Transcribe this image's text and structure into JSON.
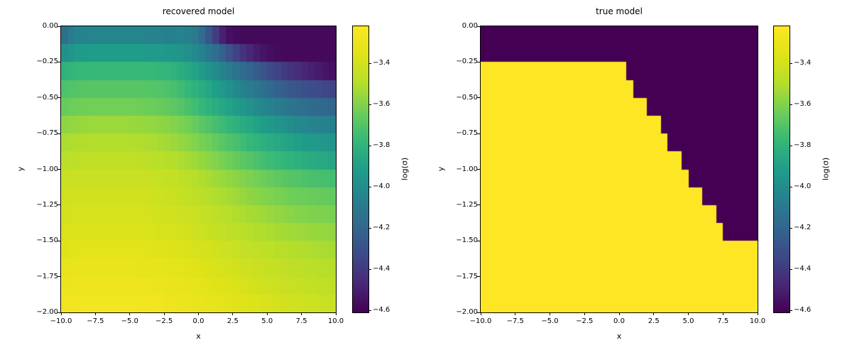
{
  "figure": {
    "background": "#ffffff"
  },
  "colors": {
    "viridis_anchors": [
      "#440154",
      "#482878",
      "#3e4a89",
      "#31688e",
      "#26828e",
      "#1f9e89",
      "#35b779",
      "#6ece58",
      "#b5de2b",
      "#dfe318",
      "#fde725"
    ],
    "frame": "#000000",
    "text": "#000000"
  },
  "chart_data": [
    {
      "type": "heatmap",
      "title": "recovered model",
      "xlabel": "x",
      "ylabel": "y",
      "xlim": [
        -10,
        10
      ],
      "ylim": [
        -2,
        0
      ],
      "x_ticks": [
        -10,
        -7.5,
        -5,
        -2.5,
        0,
        2.5,
        5,
        7.5,
        10
      ],
      "x_tick_labels": [
        "−10.0",
        "−7.5",
        "−5.0",
        "−2.5",
        "0.0",
        "2.5",
        "5.0",
        "7.5",
        "10.0"
      ],
      "y_ticks": [
        0,
        -0.25,
        -0.5,
        -0.75,
        -1,
        -1.25,
        -1.5,
        -1.75,
        -2
      ],
      "y_tick_labels": [
        "0.00",
        "−0.25",
        "−0.50",
        "−0.75",
        "−1.00",
        "−1.25",
        "−1.50",
        "−1.75",
        "−2.00"
      ],
      "colormap": "viridis",
      "colorbar": {
        "label": "log(σ)",
        "vmin": -4.61,
        "vmax": -3.22,
        "ticks": [
          -3.4,
          -3.6,
          -3.8,
          -4.0,
          -4.2,
          -4.4,
          -4.6
        ],
        "tick_labels": [
          "−3.4",
          "−3.6",
          "−3.8",
          "−4.0",
          "−4.2",
          "−4.4",
          "−4.6"
        ]
      },
      "grid": {
        "nx": 40,
        "ny": 16,
        "cell_dx": 0.5,
        "cell_dy": 0.125,
        "x_samples": [
          -10,
          -9,
          -8,
          -7,
          -6,
          -5,
          -4,
          -3,
          -2,
          -1,
          0,
          1,
          2,
          3,
          4,
          5,
          6,
          7,
          8,
          9,
          10
        ],
        "row_y_centers": [
          -0.0625,
          -0.1875,
          -0.3125,
          -0.4375,
          -0.5625,
          -0.6875,
          -0.8125,
          -0.9375,
          -1.0625,
          -1.1875,
          -1.3125,
          -1.4375,
          -1.5625,
          -1.6875,
          -1.8125,
          -1.9375
        ],
        "rows": [
          [
            -4.19,
            -4.05,
            -4.04,
            -4.04,
            -4.04,
            -4.04,
            -4.04,
            -4.05,
            -4.06,
            -4.05,
            -4.12,
            -4.33,
            -4.55,
            -4.58,
            -4.58,
            -4.58,
            -4.58,
            -4.58,
            -4.58,
            -4.58,
            -4.58
          ],
          [
            -4.0,
            -3.93,
            -3.92,
            -3.92,
            -3.92,
            -3.92,
            -3.92,
            -3.93,
            -3.94,
            -3.97,
            -4.03,
            -4.13,
            -4.26,
            -4.4,
            -4.5,
            -4.56,
            -4.58,
            -4.58,
            -4.58,
            -4.58,
            -4.58
          ],
          [
            -3.82,
            -3.78,
            -3.77,
            -3.77,
            -3.77,
            -3.77,
            -3.77,
            -3.78,
            -3.8,
            -3.84,
            -3.91,
            -3.99,
            -4.07,
            -4.15,
            -4.23,
            -4.31,
            -4.38,
            -4.44,
            -4.49,
            -4.53,
            -4.56
          ],
          [
            -3.72,
            -3.7,
            -3.69,
            -3.69,
            -3.69,
            -3.69,
            -3.69,
            -3.7,
            -3.72,
            -3.76,
            -3.82,
            -3.89,
            -3.96,
            -4.04,
            -4.11,
            -4.17,
            -4.23,
            -4.28,
            -4.31,
            -4.34,
            -4.36
          ],
          [
            -3.66,
            -3.64,
            -3.63,
            -3.63,
            -3.63,
            -3.63,
            -3.64,
            -3.65,
            -3.67,
            -3.71,
            -3.76,
            -3.82,
            -3.88,
            -3.94,
            -4.0,
            -4.05,
            -4.1,
            -4.14,
            -4.17,
            -4.19,
            -4.21
          ],
          [
            -3.58,
            -3.56,
            -3.55,
            -3.55,
            -3.55,
            -3.55,
            -3.56,
            -3.57,
            -3.59,
            -3.62,
            -3.67,
            -3.72,
            -3.77,
            -3.83,
            -3.88,
            -3.93,
            -3.97,
            -4.01,
            -4.04,
            -4.06,
            -4.07
          ],
          [
            -3.52,
            -3.51,
            -3.5,
            -3.5,
            -3.5,
            -3.5,
            -3.51,
            -3.52,
            -3.54,
            -3.57,
            -3.61,
            -3.65,
            -3.7,
            -3.74,
            -3.79,
            -3.83,
            -3.87,
            -3.9,
            -3.93,
            -3.95,
            -3.97
          ],
          [
            -3.48,
            -3.47,
            -3.46,
            -3.46,
            -3.46,
            -3.46,
            -3.47,
            -3.48,
            -3.49,
            -3.52,
            -3.55,
            -3.59,
            -3.63,
            -3.67,
            -3.71,
            -3.75,
            -3.78,
            -3.81,
            -3.84,
            -3.86,
            -3.88
          ],
          [
            -3.44,
            -3.43,
            -3.43,
            -3.43,
            -3.43,
            -3.43,
            -3.43,
            -3.44,
            -3.45,
            -3.47,
            -3.5,
            -3.53,
            -3.56,
            -3.59,
            -3.62,
            -3.65,
            -3.68,
            -3.7,
            -3.72,
            -3.73,
            -3.74
          ],
          [
            -3.42,
            -3.41,
            -3.41,
            -3.41,
            -3.41,
            -3.41,
            -3.41,
            -3.42,
            -3.43,
            -3.45,
            -3.47,
            -3.5,
            -3.52,
            -3.55,
            -3.58,
            -3.6,
            -3.62,
            -3.64,
            -3.65,
            -3.66,
            -3.67
          ],
          [
            -3.4,
            -3.39,
            -3.39,
            -3.39,
            -3.39,
            -3.39,
            -3.39,
            -3.4,
            -3.41,
            -3.42,
            -3.44,
            -3.46,
            -3.49,
            -3.51,
            -3.53,
            -3.55,
            -3.57,
            -3.59,
            -3.6,
            -3.61,
            -3.62
          ],
          [
            -3.38,
            -3.37,
            -3.37,
            -3.37,
            -3.37,
            -3.37,
            -3.37,
            -3.38,
            -3.39,
            -3.4,
            -3.42,
            -3.44,
            -3.46,
            -3.48,
            -3.5,
            -3.51,
            -3.53,
            -3.54,
            -3.55,
            -3.56,
            -3.57
          ],
          [
            -3.35,
            -3.34,
            -3.34,
            -3.34,
            -3.34,
            -3.34,
            -3.34,
            -3.35,
            -3.36,
            -3.37,
            -3.39,
            -3.4,
            -3.42,
            -3.44,
            -3.46,
            -3.47,
            -3.49,
            -3.5,
            -3.51,
            -3.52,
            -3.53
          ],
          [
            -3.32,
            -3.31,
            -3.31,
            -3.31,
            -3.31,
            -3.31,
            -3.32,
            -3.32,
            -3.33,
            -3.34,
            -3.36,
            -3.38,
            -3.39,
            -3.41,
            -3.43,
            -3.44,
            -3.46,
            -3.47,
            -3.48,
            -3.49,
            -3.5
          ],
          [
            -3.3,
            -3.29,
            -3.29,
            -3.29,
            -3.29,
            -3.29,
            -3.29,
            -3.3,
            -3.31,
            -3.32,
            -3.33,
            -3.35,
            -3.36,
            -3.38,
            -3.4,
            -3.41,
            -3.43,
            -3.44,
            -3.45,
            -3.46,
            -3.47
          ],
          [
            -3.28,
            -3.27,
            -3.27,
            -3.27,
            -3.27,
            -3.27,
            -3.27,
            -3.28,
            -3.29,
            -3.3,
            -3.31,
            -3.32,
            -3.34,
            -3.35,
            -3.37,
            -3.38,
            -3.4,
            -3.41,
            -3.42,
            -3.43,
            -3.44
          ]
        ]
      }
    },
    {
      "type": "heatmap",
      "title": "true model",
      "xlabel": "x",
      "ylabel": "y",
      "xlim": [
        -10,
        10
      ],
      "ylim": [
        -2,
        0
      ],
      "x_ticks": [
        -10,
        -7.5,
        -5,
        -2.5,
        0,
        2.5,
        5,
        7.5,
        10
      ],
      "x_tick_labels": [
        "−10.0",
        "−7.5",
        "−5.0",
        "−2.5",
        "0.0",
        "2.5",
        "5.0",
        "7.5",
        "10.0"
      ],
      "y_ticks": [
        0,
        -0.25,
        -0.5,
        -0.75,
        -1,
        -1.25,
        -1.5,
        -1.75,
        -2
      ],
      "y_tick_labels": [
        "0.00",
        "−0.25",
        "−0.50",
        "−0.75",
        "−1.00",
        "−1.25",
        "−1.50",
        "−1.75",
        "−2.00"
      ],
      "colormap": "viridis",
      "colorbar": {
        "label": "log(σ)",
        "vmin": -4.61,
        "vmax": -3.22,
        "ticks": [
          -3.4,
          -3.6,
          -3.8,
          -4.0,
          -4.2,
          -4.4,
          -4.6
        ],
        "tick_labels": [
          "−3.4",
          "−3.6",
          "−3.8",
          "−4.0",
          "−4.2",
          "−4.4",
          "−4.6"
        ]
      },
      "values": {
        "background": -4.61,
        "block": -3.22
      },
      "block_rows": [
        {
          "y_top": -0.25,
          "y_bottom": -0.375,
          "x_start": -10,
          "x_end": 0.5
        },
        {
          "y_top": -0.375,
          "y_bottom": -0.5,
          "x_start": -10,
          "x_end": 1.0
        },
        {
          "y_top": -0.5,
          "y_bottom": -0.625,
          "x_start": -10,
          "x_end": 2.0
        },
        {
          "y_top": -0.625,
          "y_bottom": -0.75,
          "x_start": -10,
          "x_end": 3.0
        },
        {
          "y_top": -0.75,
          "y_bottom": -0.875,
          "x_start": -10,
          "x_end": 3.5
        },
        {
          "y_top": -0.875,
          "y_bottom": -1.0,
          "x_start": -10,
          "x_end": 4.5
        },
        {
          "y_top": -1.0,
          "y_bottom": -1.125,
          "x_start": -10,
          "x_end": 5.0
        },
        {
          "y_top": -1.125,
          "y_bottom": -1.25,
          "x_start": -10,
          "x_end": 6.0
        },
        {
          "y_top": -1.25,
          "y_bottom": -1.375,
          "x_start": -10,
          "x_end": 7.0
        },
        {
          "y_top": -1.375,
          "y_bottom": -1.5,
          "x_start": -10,
          "x_end": 7.5
        },
        {
          "y_top": -1.5,
          "y_bottom": -2.0,
          "x_start": -10,
          "x_end": 10.0
        }
      ]
    }
  ]
}
